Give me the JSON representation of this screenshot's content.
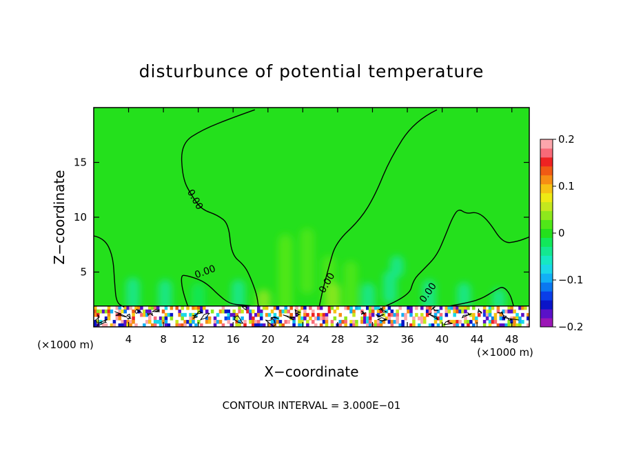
{
  "chart_data": {
    "type": "contour",
    "title": "disturbunce of potential temperature",
    "xlabel": "X−coordinate",
    "ylabel": "Z−coordinate",
    "x_unit_left": "(×1000 m)",
    "x_unit_right": "(×1000 m)",
    "xlim": [
      0,
      50
    ],
    "ylim": [
      0,
      20
    ],
    "x_ticks": [
      4,
      8,
      12,
      16,
      20,
      24,
      28,
      32,
      36,
      40,
      44,
      48
    ],
    "y_ticks": [
      5,
      10,
      15
    ],
    "colorbar": {
      "range": [
        -0.2,
        0.2
      ],
      "ticks": [
        0.2,
        0.1,
        0,
        -0.1,
        -0.2
      ],
      "tick_labels": [
        "0.2",
        "0.1",
        "0",
        "−0.1",
        "−0.2"
      ],
      "colors": [
        "#9b16b6",
        "#5a11c8",
        "#0a14c8",
        "#0a3ee8",
        "#0a78f0",
        "#12b0f5",
        "#1ad8e8",
        "#16e8c2",
        "#14e890",
        "#12e85a",
        "#24e01c",
        "#50e818",
        "#8ee81c",
        "#c4e81e",
        "#eeea14",
        "#f6c214",
        "#f68e14",
        "#f05a14",
        "#ee2222",
        "#f86a78",
        "#fca6ac"
      ]
    },
    "background_value": 0.0,
    "contour_labels": [
      "0.00",
      "0.00",
      "0.00",
      "0.00"
    ],
    "contour_interval_text": "CONTOUR INTERVAL = 3.000E−01",
    "zero_contour_lines": [
      [
        [
          0,
          8.3
        ],
        [
          1.2,
          8.1
        ],
        [
          2.2,
          6.5
        ],
        [
          2.4,
          4.0
        ],
        [
          2.6,
          2.2
        ],
        [
          3.5,
          1.8
        ]
      ],
      [
        [
          10.8,
          1.9
        ],
        [
          10.2,
          3.2
        ],
        [
          10.0,
          4.7
        ],
        [
          10.6,
          4.7
        ],
        [
          12.2,
          4.3
        ],
        [
          13.2,
          3.8
        ],
        [
          14.2,
          3.0
        ],
        [
          15.6,
          2.1
        ],
        [
          17.0,
          2.0
        ],
        [
          18.2,
          1.9
        ]
      ],
      [
        [
          18.5,
          19.8
        ],
        [
          16,
          19.1
        ],
        [
          12.5,
          18.0
        ],
        [
          10.0,
          16.7
        ],
        [
          10.2,
          13.5
        ],
        [
          11.3,
          11.9
        ],
        [
          12.4,
          10.7
        ],
        [
          14.2,
          10.2
        ],
        [
          15.5,
          9.4
        ],
        [
          15.8,
          6.6
        ],
        [
          17.3,
          5.6
        ],
        [
          18.0,
          4.5
        ],
        [
          18.7,
          3.0
        ],
        [
          18.9,
          1.9
        ]
      ],
      [
        [
          39.4,
          19.8
        ],
        [
          36.8,
          18.8
        ],
        [
          34.0,
          15.3
        ],
        [
          32.3,
          12.0
        ],
        [
          30.6,
          9.8
        ],
        [
          27.8,
          7.7
        ],
        [
          27.0,
          5.5
        ],
        [
          26.3,
          3.4
        ],
        [
          25.9,
          1.9
        ]
      ],
      [
        [
          33.5,
          1.9
        ],
        [
          36.2,
          2.8
        ],
        [
          36.7,
          4.3
        ],
        [
          37.8,
          5.2
        ],
        [
          39.4,
          6.5
        ],
        [
          40.4,
          8.4
        ],
        [
          41.2,
          10.0
        ],
        [
          41.9,
          10.8
        ],
        [
          42.8,
          10.3
        ],
        [
          44.0,
          10.5
        ],
        [
          45.3,
          9.7
        ],
        [
          47.0,
          7.6
        ],
        [
          48.7,
          7.8
        ],
        [
          50.0,
          8.2
        ]
      ],
      [
        [
          40.8,
          1.9
        ],
        [
          42.3,
          2.1
        ],
        [
          44.4,
          2.5
        ],
        [
          46.2,
          3.4
        ],
        [
          47.0,
          3.7
        ],
        [
          47.8,
          3.0
        ],
        [
          48.2,
          1.9
        ]
      ]
    ]
  }
}
